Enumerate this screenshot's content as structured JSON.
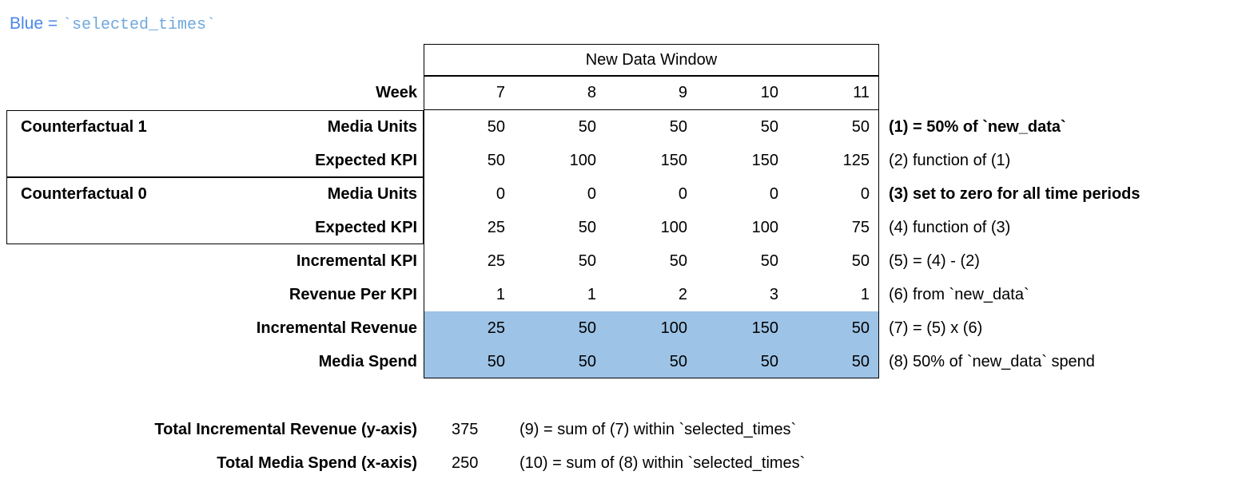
{
  "colors": {
    "highlight_blue": "#9DC3E6",
    "legend_text_blue": "#4A86E8",
    "legend_code_blue": "#6FA8DC",
    "border": "#000000",
    "background": "#ffffff"
  },
  "legend": {
    "prefix": "Blue = ",
    "code": "`selected_times`"
  },
  "table": {
    "window_header": "New Data Window",
    "week_label": "Week",
    "weeks": [
      "7",
      "8",
      "9",
      "10",
      "11"
    ],
    "rows": [
      {
        "group": "Counterfactual 1",
        "label": "Media Units",
        "values": [
          "50",
          "50",
          "50",
          "50",
          "50"
        ],
        "note": "(1) = 50% of `new_data`"
      },
      {
        "label": "Expected KPI",
        "values": [
          "50",
          "100",
          "150",
          "150",
          "125"
        ],
        "note": "(2) function of (1)"
      },
      {
        "group": "Counterfactual 0",
        "label": "Media Units",
        "values": [
          "0",
          "0",
          "0",
          "0",
          "0"
        ],
        "note": "(3) set to zero for all time periods"
      },
      {
        "label": "Expected KPI",
        "values": [
          "25",
          "50",
          "100",
          "100",
          "75"
        ],
        "note": "(4) function of (3)"
      },
      {
        "label": "Incremental KPI",
        "values": [
          "25",
          "50",
          "50",
          "50",
          "50"
        ],
        "note": "(5) = (4) - (2)"
      },
      {
        "label": "Revenue Per KPI",
        "values": [
          "1",
          "1",
          "2",
          "3",
          "1"
        ],
        "note": "(6) from `new_data`"
      },
      {
        "label": "Incremental Revenue",
        "values": [
          "25",
          "50",
          "100",
          "150",
          "50"
        ],
        "note": "(7) = (5) x (6)",
        "highlighted": true
      },
      {
        "label": "Media Spend",
        "values": [
          "50",
          "50",
          "50",
          "50",
          "50"
        ],
        "note": "(8) 50% of `new_data` spend",
        "highlighted": true
      }
    ]
  },
  "summary": [
    {
      "label": "Total Incremental Revenue (y-axis)",
      "value": "375",
      "note": "(9) = sum of (7) within `selected_times`"
    },
    {
      "label": "Total Media Spend (x-axis)",
      "value": "250",
      "note": "(10) = sum of (8) within `selected_times`"
    }
  ],
  "chart_data": {
    "type": "table",
    "title": "New Data Window",
    "columns": [
      "Week",
      7,
      8,
      9,
      10,
      11
    ],
    "rows": [
      {
        "section": "Counterfactual 1",
        "label": "Media Units",
        "values": [
          50,
          50,
          50,
          50,
          50
        ],
        "annotation": "(1) = 50% of `new_data`"
      },
      {
        "section": "Counterfactual 1",
        "label": "Expected KPI",
        "values": [
          50,
          100,
          150,
          150,
          125
        ],
        "annotation": "(2) function of (1)"
      },
      {
        "section": "Counterfactual 0",
        "label": "Media Units",
        "values": [
          0,
          0,
          0,
          0,
          0
        ],
        "annotation": "(3) set to zero for all time periods"
      },
      {
        "section": "Counterfactual 0",
        "label": "Expected KPI",
        "values": [
          25,
          50,
          100,
          100,
          75
        ],
        "annotation": "(4) function of (3)"
      },
      {
        "label": "Incremental KPI",
        "values": [
          25,
          50,
          50,
          50,
          50
        ],
        "annotation": "(5) = (4) - (2)"
      },
      {
        "label": "Revenue Per KPI",
        "values": [
          1,
          1,
          2,
          3,
          1
        ],
        "annotation": "(6) from `new_data`"
      },
      {
        "label": "Incremental Revenue",
        "values": [
          25,
          50,
          100,
          150,
          50
        ],
        "annotation": "(7) = (5) x (6)",
        "highlighted": true
      },
      {
        "label": "Media Spend",
        "values": [
          50,
          50,
          50,
          50,
          50
        ],
        "annotation": "(8) 50% of `new_data` spend",
        "highlighted": true
      }
    ],
    "totals": [
      {
        "label": "Total Incremental Revenue (y-axis)",
        "value": 375,
        "annotation": "(9) = sum of (7) within `selected_times`"
      },
      {
        "label": "Total Media Spend (x-axis)",
        "value": 250,
        "annotation": "(10) = sum of (8) within `selected_times`"
      }
    ],
    "highlighted_rows_meaning": "Blue = `selected_times`",
    "grid": "boxes around header, data window, Counterfactual 1 and Counterfactual 0 groups"
  }
}
